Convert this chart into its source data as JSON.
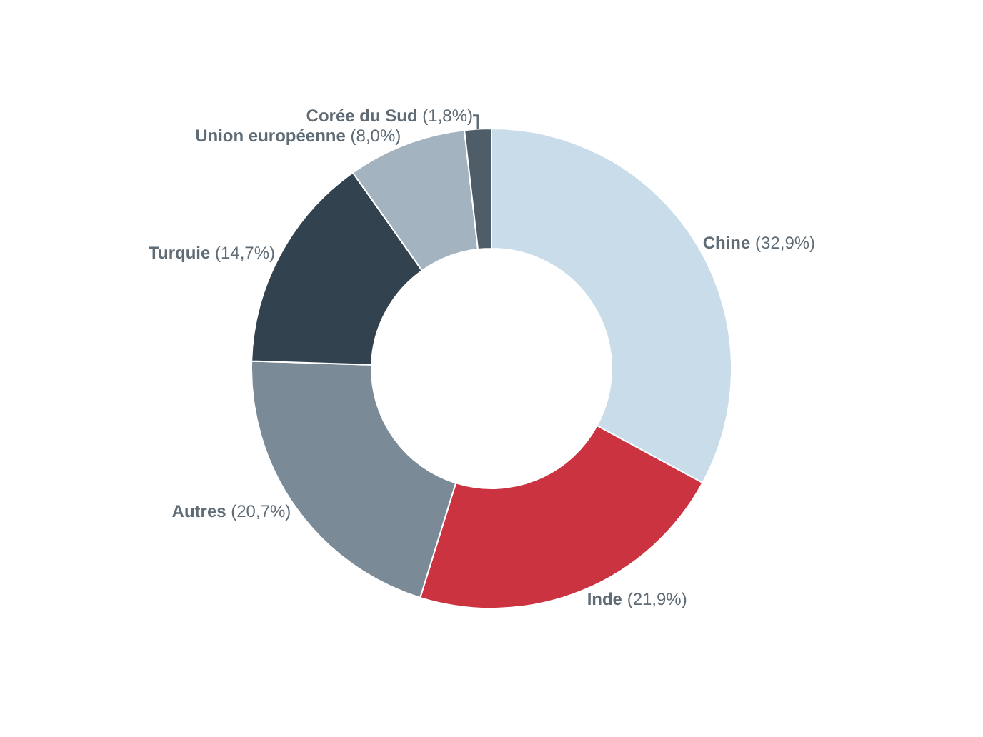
{
  "chart_data": {
    "type": "donut",
    "categories": [
      "Chine",
      "Inde",
      "Autres",
      "Turquie",
      "Union européenne",
      "Corée du Sud"
    ],
    "values": [
      32.9,
      21.9,
      20.7,
      14.7,
      8.0,
      1.8
    ],
    "colors": [
      "#c9dcea",
      "#cc3340",
      "#7a8b97",
      "#32424e",
      "#a3b3bf",
      "#4e5d68"
    ],
    "value_labels": [
      "(32,9%)",
      "(21,9%)",
      "(20,7%)",
      "(14,7%)",
      "(8,0%)",
      "(1,8%)"
    ],
    "legend": false
  }
}
